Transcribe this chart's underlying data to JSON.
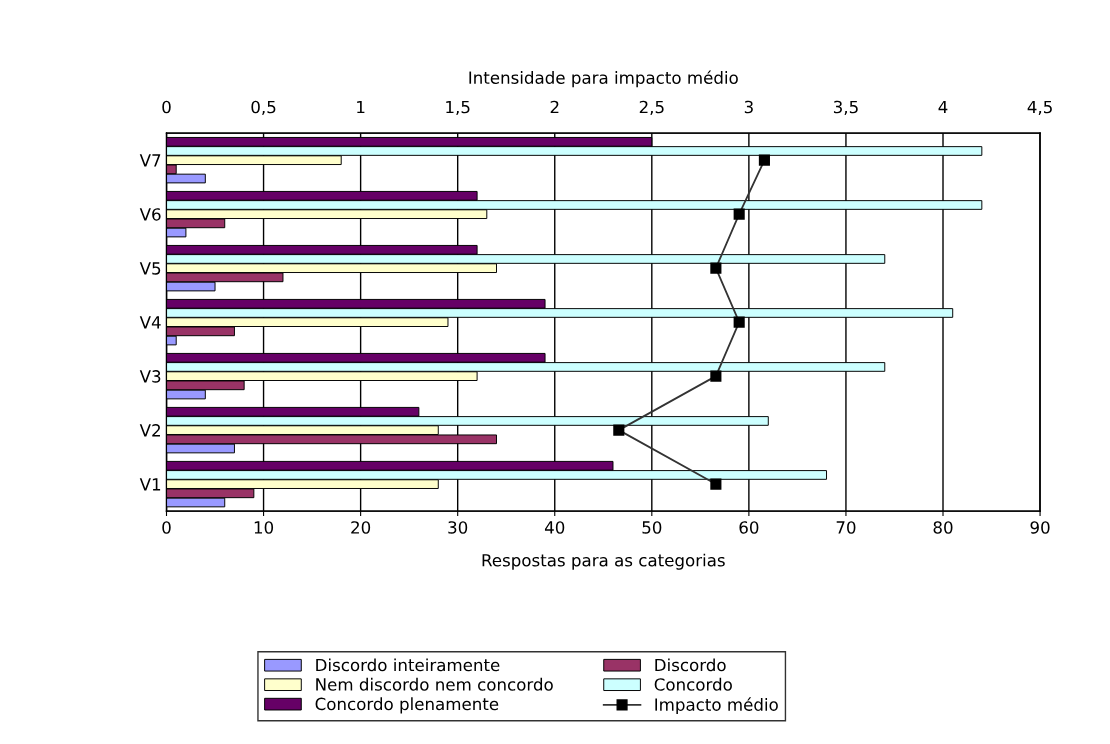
{
  "chart_data": {
    "type": "bar",
    "orientation": "horizontal",
    "xlabel": "Respostas para as categorias",
    "x2label": "Intensidade para impacto médio",
    "categories": [
      "V7",
      "V6",
      "V5",
      "V4",
      "V3",
      "V2",
      "V1"
    ],
    "series": [
      {
        "name": "Discordo inteiramente",
        "color": "#9999ff",
        "values": [
          4,
          2,
          5,
          1,
          4,
          7,
          6
        ]
      },
      {
        "name": "Discordo",
        "color": "#993366",
        "values": [
          1,
          6,
          12,
          7,
          8,
          34,
          9
        ]
      },
      {
        "name": "Nem discordo nem concordo",
        "color": "#ffffcc",
        "values": [
          18,
          33,
          34,
          29,
          32,
          28,
          28
        ]
      },
      {
        "name": "Concordo",
        "color": "#ccffff",
        "values": [
          84,
          84,
          74,
          81,
          74,
          62,
          68
        ]
      },
      {
        "name": "Concordo plenamente",
        "color": "#660066",
        "values": [
          50,
          32,
          32,
          39,
          39,
          26,
          46
        ]
      },
      {
        "name": "Impacto médio",
        "type": "line",
        "axis": "x2",
        "color": "#333333",
        "marker": "square",
        "values": [
          3.08,
          2.95,
          2.83,
          2.95,
          2.83,
          2.33,
          2.83
        ]
      }
    ],
    "xlim": [
      0,
      90
    ],
    "xticks": [
      0,
      10,
      20,
      30,
      40,
      50,
      60,
      70,
      80,
      90
    ],
    "x2lim": [
      0,
      4.5
    ],
    "x2ticks": [
      0,
      {
        "value": 0.5,
        "label": "0,5"
      },
      1,
      {
        "value": 1.5,
        "label": "1,5"
      },
      2,
      {
        "value": 2.5,
        "label": "2,5"
      },
      3,
      {
        "value": 3.5,
        "label": "3,5"
      },
      4,
      {
        "value": 4.5,
        "label": "4,5"
      }
    ],
    "grid": "x",
    "legend": "bottom"
  }
}
